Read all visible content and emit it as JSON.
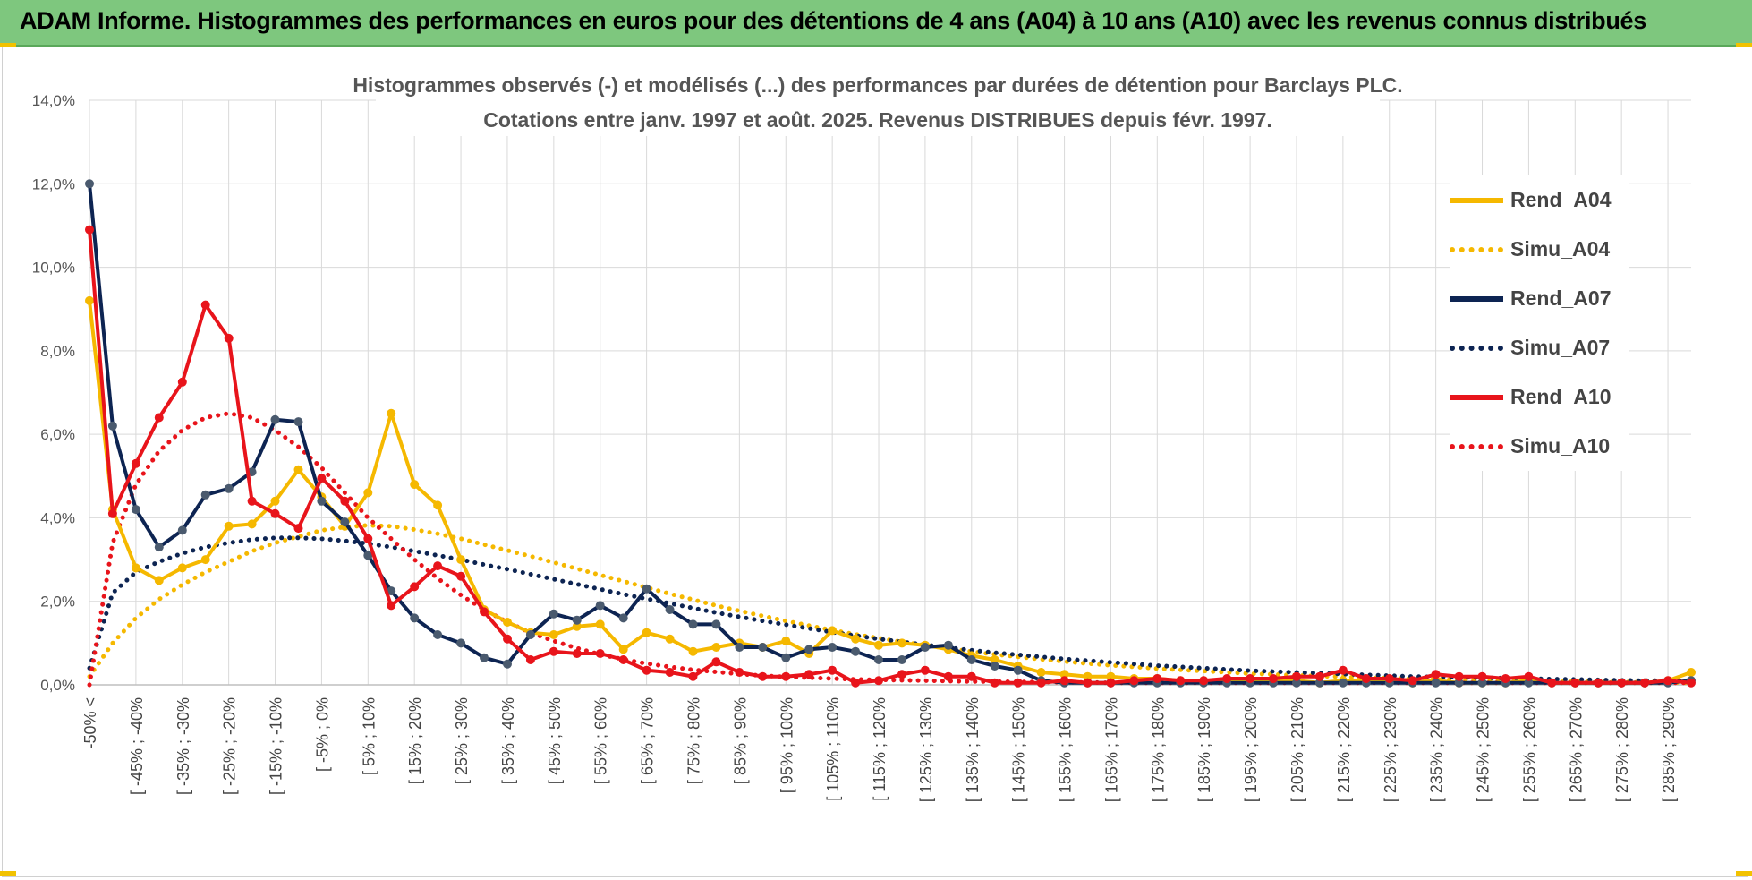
{
  "banner": {
    "title": "ADAM Informe. Histogrammes des performances en euros pour des détentions de 4 ans (A04) à 10 ans (A10) avec les revenus connus distribués"
  },
  "colors": {
    "banner": "#7ec77e",
    "A04": "#f5b800",
    "A07": "#0d2452",
    "A07_marker": "#4a5a6e",
    "A10": "#e8141b",
    "grid": "#d9d9d9"
  },
  "chart_data": {
    "type": "line",
    "title": "Histogrammes observés (-) et modélisés (...) des performances par durées de détention pour Barclays PLC.",
    "subtitle": "Cotations entre janv. 1997 et août. 2025. Revenus DISTRIBUES depuis févr. 1997.",
    "xlabel": "",
    "ylabel": "",
    "ylim": [
      0,
      14
    ],
    "y_ticks": [
      "0,0%",
      "2,0%",
      "4,0%",
      "6,0%",
      "8,0%",
      "10,0%",
      "12,0%",
      "14,0%"
    ],
    "x_tick_labels": [
      "-50% <",
      "[ -45% ; -40%",
      "[ -35% ; -30%",
      "[ -25% ; -20%",
      "[ -15% ; -10%",
      "[ -5% ; 0%",
      "[ 5% ; 10%",
      "[ 15% ; 20%",
      "[ 25% ; 30%",
      "[ 35% ; 40%",
      "[ 45% ; 50%",
      "[ 55% ; 60%",
      "[ 65% ; 70%",
      "[ 75% ; 80%",
      "[ 85% ; 90%",
      "[ 95% ; 100%",
      "[ 105% ; 110%",
      "[ 115% ; 120%",
      "[ 125% ; 130%",
      "[ 135% ; 140%",
      "[ 145% ; 150%",
      "[ 155% ; 160%",
      "[ 165% ; 170%",
      "[ 175% ; 180%",
      "[ 185% ; 190%",
      "[ 195% ; 200%",
      "[ 205% ; 210%",
      "[ 215% ; 220%",
      "[ 225% ; 230%",
      "[ 235% ; 240%",
      "[ 245% ; 250%",
      "[ 255% ; 260%",
      "[ 265% ; 270%",
      "[ 275% ; 280%",
      "[ 285% ; 290%"
    ],
    "grid": true,
    "legend_position": "right",
    "series": [
      {
        "name": "Rend_A04",
        "style": "solid-markers",
        "color": "#f5b800",
        "values": [
          9.2,
          4.2,
          2.8,
          2.5,
          2.8,
          3.0,
          3.8,
          3.85,
          4.4,
          5.15,
          4.5,
          3.8,
          4.6,
          6.5,
          4.8,
          4.3,
          3.0,
          1.8,
          1.5,
          1.25,
          1.2,
          1.4,
          1.45,
          0.85,
          1.25,
          1.1,
          0.8,
          0.9,
          1.0,
          0.9,
          1.05,
          0.75,
          1.3,
          1.1,
          0.95,
          1.0,
          0.95,
          0.85,
          0.7,
          0.6,
          0.45,
          0.3,
          0.25,
          0.2,
          0.2,
          0.15,
          0.15,
          0.1,
          0.1,
          0.1,
          0.1,
          0.1,
          0.1,
          0.05,
          0.1,
          0.1,
          0.1,
          0.05,
          0.1,
          0.05,
          0.05,
          0.05,
          0.1,
          0.05,
          0.05,
          0.05,
          0.05,
          0.05,
          0.1,
          0.3
        ]
      },
      {
        "name": "Simu_A04",
        "style": "dotted",
        "color": "#f5b800",
        "values": [
          0.2,
          1.0,
          1.6,
          2.05,
          2.4,
          2.7,
          2.95,
          3.2,
          3.4,
          3.55,
          3.7,
          3.78,
          3.82,
          3.8,
          3.72,
          3.62,
          3.5,
          3.36,
          3.22,
          3.08,
          2.93,
          2.78,
          2.63,
          2.48,
          2.33,
          2.18,
          2.04,
          1.9,
          1.77,
          1.65,
          1.53,
          1.42,
          1.31,
          1.21,
          1.12,
          1.03,
          0.95,
          0.87,
          0.8,
          0.73,
          0.67,
          0.61,
          0.56,
          0.51,
          0.47,
          0.43,
          0.39,
          0.36,
          0.33,
          0.3,
          0.27,
          0.25,
          0.23,
          0.21,
          0.19,
          0.17,
          0.16,
          0.14,
          0.13,
          0.12,
          0.11,
          0.1,
          0.09,
          0.08,
          0.08,
          0.07,
          0.07,
          0.06,
          0.06,
          0.05
        ]
      },
      {
        "name": "Rend_A07",
        "style": "solid-markers",
        "color": "#0d2452",
        "values": [
          12.0,
          6.2,
          4.2,
          3.3,
          3.7,
          4.55,
          4.7,
          5.1,
          6.35,
          6.3,
          4.4,
          3.9,
          3.1,
          2.25,
          1.6,
          1.2,
          1.0,
          0.65,
          0.5,
          1.2,
          1.7,
          1.55,
          1.9,
          1.6,
          2.3,
          1.8,
          1.45,
          1.45,
          0.9,
          0.9,
          0.65,
          0.85,
          0.9,
          0.8,
          0.6,
          0.6,
          0.9,
          0.95,
          0.6,
          0.45,
          0.35,
          0.1,
          0.05,
          0.05,
          0.05,
          0.05,
          0.05,
          0.05,
          0.05,
          0.05,
          0.05,
          0.05,
          0.05,
          0.05,
          0.05,
          0.05,
          0.05,
          0.05,
          0.05,
          0.05,
          0.05,
          0.05,
          0.05,
          0.05,
          0.05,
          0.05,
          0.05,
          0.05,
          0.05,
          0.1
        ]
      },
      {
        "name": "Simu_A07",
        "style": "dotted",
        "color": "#0d2452",
        "values": [
          0.4,
          2.2,
          2.7,
          2.95,
          3.15,
          3.3,
          3.4,
          3.48,
          3.52,
          3.52,
          3.5,
          3.45,
          3.38,
          3.3,
          3.2,
          3.1,
          3.0,
          2.88,
          2.77,
          2.65,
          2.53,
          2.41,
          2.29,
          2.17,
          2.06,
          1.95,
          1.84,
          1.73,
          1.63,
          1.53,
          1.44,
          1.35,
          1.26,
          1.18,
          1.1,
          1.03,
          0.96,
          0.89,
          0.83,
          0.77,
          0.72,
          0.67,
          0.62,
          0.58,
          0.54,
          0.5,
          0.46,
          0.43,
          0.4,
          0.37,
          0.34,
          0.32,
          0.3,
          0.28,
          0.26,
          0.24,
          0.22,
          0.2,
          0.19,
          0.18,
          0.17,
          0.16,
          0.15,
          0.14,
          0.13,
          0.12,
          0.11,
          0.1,
          0.1,
          0.1
        ]
      },
      {
        "name": "Rend_A10",
        "style": "solid-markers",
        "color": "#e8141b",
        "values": [
          10.9,
          4.1,
          5.3,
          6.4,
          7.25,
          9.1,
          8.3,
          4.4,
          4.1,
          3.75,
          4.95,
          4.4,
          3.5,
          1.9,
          2.35,
          2.85,
          2.6,
          1.75,
          1.1,
          0.6,
          0.8,
          0.75,
          0.75,
          0.6,
          0.35,
          0.3,
          0.2,
          0.55,
          0.3,
          0.2,
          0.2,
          0.25,
          0.35,
          0.05,
          0.1,
          0.25,
          0.35,
          0.2,
          0.2,
          0.05,
          0.05,
          0.05,
          0.1,
          0.05,
          0.05,
          0.1,
          0.15,
          0.1,
          0.1,
          0.15,
          0.15,
          0.15,
          0.2,
          0.2,
          0.35,
          0.15,
          0.15,
          0.1,
          0.25,
          0.2,
          0.2,
          0.15,
          0.2,
          0.05,
          0.05,
          0.05,
          0.05,
          0.05,
          0.1,
          0.05
        ]
      },
      {
        "name": "Simu_A10",
        "style": "dotted",
        "color": "#e8141b",
        "values": [
          0.0,
          3.4,
          4.8,
          5.6,
          6.1,
          6.4,
          6.5,
          6.4,
          6.1,
          5.7,
          5.2,
          4.6,
          4.0,
          3.5,
          3.0,
          2.55,
          2.15,
          1.8,
          1.5,
          1.25,
          1.05,
          0.88,
          0.73,
          0.61,
          0.51,
          0.43,
          0.36,
          0.31,
          0.26,
          0.22,
          0.19,
          0.17,
          0.15,
          0.13,
          0.12,
          0.11,
          0.1,
          0.09,
          0.08,
          0.08,
          0.07,
          0.07,
          0.06,
          0.06,
          0.05,
          0.05,
          0.05,
          0.05,
          0.05,
          0.05,
          0.05,
          0.05,
          0.05,
          0.05,
          0.05,
          0.05,
          0.05,
          0.05,
          0.05,
          0.05,
          0.05,
          0.05,
          0.05,
          0.05,
          0.05,
          0.05,
          0.05,
          0.05,
          0.05,
          0.05
        ]
      }
    ]
  }
}
